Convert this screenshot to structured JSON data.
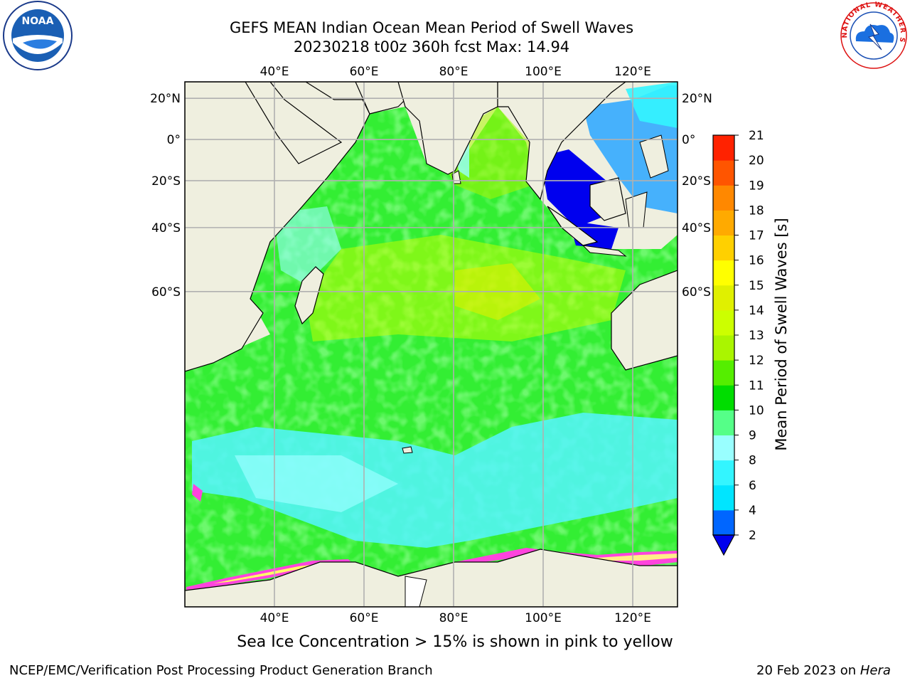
{
  "title_line1": "GEFS MEAN Indian Ocean Mean Period of Swell Waves",
  "title_line2": "20230218 t00z 360h fcst   Max: 14.94",
  "map": {
    "lon_range": [
      20,
      130
    ],
    "lat_range": [
      -88,
      27.5
    ],
    "lon_ticks": [
      {
        "value": 40,
        "label": "40°E"
      },
      {
        "value": 60,
        "label": "60°E"
      },
      {
        "value": 80,
        "label": "80°E"
      },
      {
        "value": 100,
        "label": "100°E"
      },
      {
        "value": 120,
        "label": "120°E"
      }
    ],
    "lat_ticks": [
      {
        "value": 20,
        "label": "20°N"
      },
      {
        "value": 0,
        "label": "0°"
      },
      {
        "value": -20,
        "label": "20°S"
      },
      {
        "value": -40,
        "label": "40°S"
      },
      {
        "value": -60,
        "label": "60°S"
      }
    ],
    "colors": {
      "land": "#efefdf",
      "ocean_base": "#33ee33",
      "grid": "#b0b0b0",
      "coast": "#000000",
      "ice_pink": "#ff44dd",
      "ice_yellow": "#ffff66"
    }
  },
  "colorbar": {
    "label": "Mean Period of Swell Waves [s]",
    "ticks": [
      "2",
      "4",
      "6",
      "8",
      "9",
      "10",
      "11",
      "12",
      "13",
      "14",
      "15",
      "16",
      "17",
      "18",
      "19",
      "20",
      "21"
    ],
    "colors": [
      "#0066ff",
      "#00e5ff",
      "#33f5ff",
      "#99ffff",
      "#55ff88",
      "#00dd00",
      "#55ee00",
      "#aaf500",
      "#ccff00",
      "#e0f000",
      "#ffff00",
      "#ffd000",
      "#ffaa00",
      "#ff8800",
      "#ff5500",
      "#ff2200"
    ],
    "under_color": "#0000ee"
  },
  "note": "Sea Ice Concentration > 15% is shown in pink to yellow",
  "footer_left": "NCEP/EMC/Verification Post Processing Product Generation Branch",
  "footer_right_prefix": "20 Feb 2023 on ",
  "footer_right_host": "Hera",
  "logos": {
    "noaa_text": "NOAA",
    "nws_text": "NATIONAL WEATHER SERVICE"
  }
}
